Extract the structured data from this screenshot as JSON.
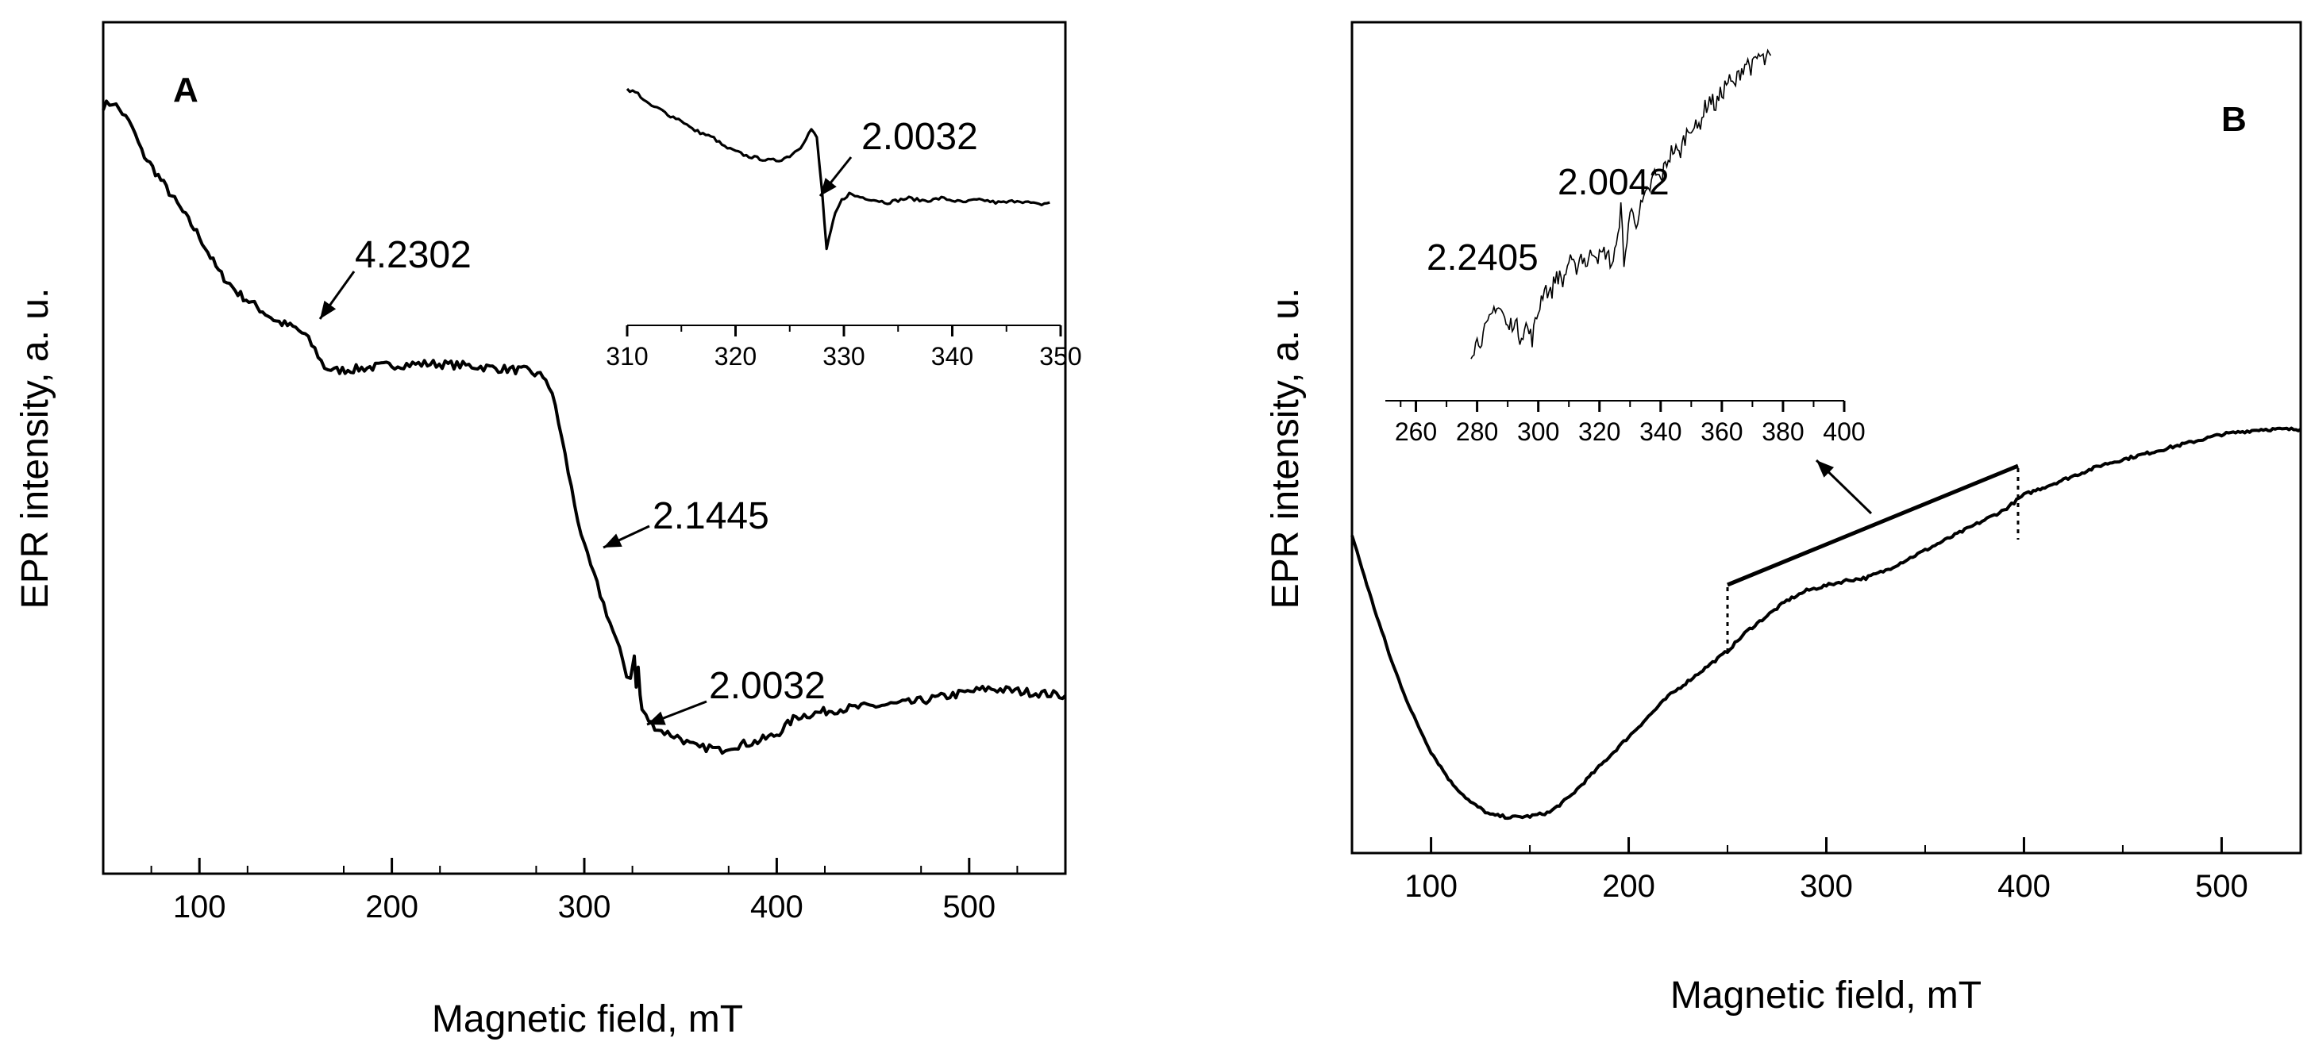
{
  "chart_data": [
    {
      "panel": "A",
      "type": "line",
      "xlabel": "Magnetic field, mT",
      "ylabel": "EPR intensity, a. u.",
      "xlim": [
        50,
        550
      ],
      "ylim": [
        0,
        1
      ],
      "xticks": [
        100,
        200,
        300,
        400,
        500
      ],
      "yticks_shown": false,
      "series": [
        {
          "name": "EPR spectrum A",
          "x": [
            50,
            55,
            60,
            65,
            70,
            80,
            90,
            100,
            110,
            120,
            130,
            140,
            150,
            155,
            160,
            165,
            170,
            180,
            190,
            200,
            220,
            240,
            260,
            270,
            280,
            285,
            290,
            295,
            300,
            305,
            310,
            315,
            320,
            322,
            324,
            326,
            327,
            328,
            329,
            330,
            332,
            335,
            340,
            345,
            350,
            355,
            360,
            365,
            370,
            375,
            380,
            390,
            400,
            410,
            420,
            430,
            450,
            470,
            490,
            510,
            530,
            550
          ],
          "y": [
            0.985,
            0.99,
            0.975,
            0.955,
            0.92,
            0.88,
            0.84,
            0.8,
            0.75,
            0.72,
            0.7,
            0.68,
            0.67,
            0.66,
            0.64,
            0.615,
            0.61,
            0.612,
            0.615,
            0.618,
            0.62,
            0.617,
            0.612,
            0.61,
            0.6,
            0.56,
            0.49,
            0.42,
            0.36,
            0.32,
            0.28,
            0.24,
            0.2,
            0.18,
            0.175,
            0.21,
            0.16,
            0.19,
            0.15,
            0.13,
            0.12,
            0.11,
            0.1,
            0.095,
            0.09,
            0.08,
            0.075,
            0.077,
            0.072,
            0.078,
            0.08,
            0.085,
            0.095,
            0.12,
            0.125,
            0.13,
            0.135,
            0.14,
            0.15,
            0.16,
            0.155,
            0.15
          ]
        }
      ],
      "annotations": [
        {
          "text": "4.2302",
          "x": 165
        },
        {
          "text": "2.1445",
          "x": 308
        },
        {
          "text": "2.0032",
          "x": 327
        }
      ],
      "inset": {
        "xlim": [
          310,
          350
        ],
        "xticks": [
          310,
          320,
          330,
          340,
          350
        ],
        "annotation": {
          "text": "2.0032",
          "x": 328.5
        },
        "x": [
          310,
          311,
          312,
          313,
          314,
          315,
          316,
          317,
          318,
          319,
          320,
          321,
          322,
          323,
          324,
          325,
          326,
          327,
          327.5,
          328,
          328.4,
          328.8,
          329.2,
          329.8,
          330.5,
          331,
          332,
          333,
          334,
          335,
          336,
          337,
          338,
          339,
          340,
          341,
          342,
          343,
          344,
          345,
          346,
          347,
          348,
          349
        ],
        "y": [
          0.92,
          0.9,
          0.85,
          0.83,
          0.8,
          0.78,
          0.74,
          0.72,
          0.7,
          0.66,
          0.64,
          0.62,
          0.61,
          0.6,
          0.6,
          0.62,
          0.66,
          0.74,
          0.7,
          0.45,
          0.2,
          0.28,
          0.36,
          0.42,
          0.45,
          0.44,
          0.43,
          0.42,
          0.41,
          0.42,
          0.43,
          0.42,
          0.42,
          0.43,
          0.42,
          0.41,
          0.42,
          0.42,
          0.41,
          0.41,
          0.42,
          0.41,
          0.4,
          0.41
        ]
      }
    },
    {
      "panel": "B",
      "type": "line",
      "xlabel": "Magnetic field, mT",
      "ylabel": "EPR intensity, a. u.",
      "xlim": [
        60,
        540
      ],
      "ylim": [
        0,
        1
      ],
      "xticks": [
        100,
        200,
        300,
        400,
        500
      ],
      "yticks_shown": false,
      "series": [
        {
          "name": "EPR spectrum B",
          "x": [
            60,
            70,
            80,
            90,
            100,
            110,
            120,
            130,
            140,
            150,
            160,
            170,
            180,
            190,
            200,
            210,
            220,
            230,
            240,
            250,
            260,
            270,
            280,
            290,
            300,
            310,
            320,
            330,
            340,
            350,
            360,
            370,
            380,
            390,
            400,
            420,
            440,
            460,
            480,
            500,
            520,
            540
          ],
          "y": [
            0.56,
            0.43,
            0.31,
            0.21,
            0.13,
            0.07,
            0.03,
            0.005,
            0.0,
            0.002,
            0.01,
            0.04,
            0.08,
            0.12,
            0.16,
            0.2,
            0.24,
            0.27,
            0.3,
            0.33,
            0.37,
            0.4,
            0.43,
            0.45,
            0.46,
            0.47,
            0.475,
            0.49,
            0.51,
            0.53,
            0.55,
            0.57,
            0.59,
            0.61,
            0.64,
            0.67,
            0.7,
            0.72,
            0.74,
            0.76,
            0.77,
            0.77
          ]
        }
      ],
      "annotations": [],
      "inset": {
        "xlim": [
          250,
          400
        ],
        "xticks": [
          260,
          280,
          300,
          320,
          340,
          360,
          380,
          400
        ],
        "labels": [
          {
            "text": "2.2405",
            "x": 285
          },
          {
            "text": "2.0042",
            "x": 329
          }
        ],
        "x": [
          278,
          280,
          282,
          284,
          286,
          288,
          290,
          292,
          294,
          296,
          298,
          300,
          302,
          304,
          306,
          308,
          310,
          312,
          314,
          316,
          318,
          320,
          322,
          324,
          326,
          327,
          328,
          329,
          330,
          332,
          334,
          336,
          338,
          340,
          342,
          344,
          346,
          348,
          350,
          352,
          354,
          356,
          358,
          360,
          362,
          364,
          366,
          368,
          370,
          372,
          374,
          376
        ],
        "y": [
          0.05,
          0.08,
          0.1,
          0.14,
          0.2,
          0.18,
          0.12,
          0.15,
          0.1,
          0.13,
          0.09,
          0.18,
          0.26,
          0.23,
          0.3,
          0.27,
          0.34,
          0.31,
          0.36,
          0.33,
          0.38,
          0.35,
          0.37,
          0.33,
          0.4,
          0.55,
          0.3,
          0.42,
          0.5,
          0.47,
          0.52,
          0.56,
          0.62,
          0.6,
          0.66,
          0.7,
          0.68,
          0.74,
          0.78,
          0.76,
          0.82,
          0.86,
          0.84,
          0.88,
          0.92,
          0.9,
          0.95,
          0.98,
          0.96,
          1.0,
          0.98,
          1.0
        ]
      },
      "selection_bar": {
        "x_start": 250,
        "x_end": 397
      }
    }
  ],
  "panels": [
    {
      "letter": "A",
      "xlabel": "Magnetic field, mT",
      "ylabel": "EPR intensity, a. u."
    },
    {
      "letter": "B",
      "xlabel": "Magnetic field, mT",
      "ylabel": "EPR intensity, a. u."
    }
  ]
}
